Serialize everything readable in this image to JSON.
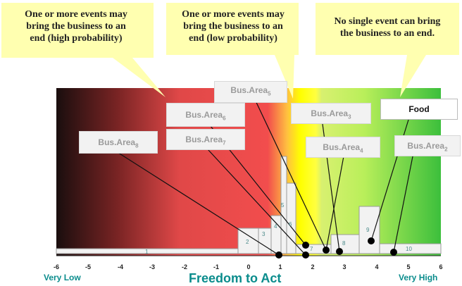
{
  "callouts": [
    {
      "text": "One or more events may\nbring the business to an\nend (high probability)"
    },
    {
      "text": "One or more events may\nbring the business to an\nend (low probability)"
    },
    {
      "text": "No single event can bring\nthe business to an end."
    }
  ],
  "labels": [
    {
      "name": "Bus.Area",
      "sub": "5"
    },
    {
      "name": "Bus.Area",
      "sub": "6"
    },
    {
      "name": "Bus.Area",
      "sub": "3"
    },
    {
      "name": "Food",
      "sub": ""
    },
    {
      "name": "Bus.Area",
      "sub": "7"
    },
    {
      "name": "Bus.Area",
      "sub": "8"
    },
    {
      "name": "Bus.Area",
      "sub": "4"
    },
    {
      "name": "Bus.Area",
      "sub": "2"
    }
  ],
  "axis": {
    "ticks": [
      "-6",
      "-5",
      "-4",
      "-3",
      "-2",
      "-1",
      "0",
      "1",
      "2",
      "3",
      "4",
      "5",
      "6"
    ],
    "low_label": "Very Low",
    "high_label": "Very High",
    "title": "Freedom to Act"
  },
  "bar_numbers": [
    "1",
    "2",
    "3",
    "4",
    "5",
    "6",
    "7",
    "8",
    "9",
    "10"
  ],
  "colors": {
    "gradient_left": "#1a0e0e",
    "red": "#f24d4d",
    "yellow": "#ffff00",
    "light_green": "#b9ef5a",
    "green": "#3cbf3c",
    "callout_fill": "#ffffb0",
    "axis_text": "#0a8c8c"
  }
}
